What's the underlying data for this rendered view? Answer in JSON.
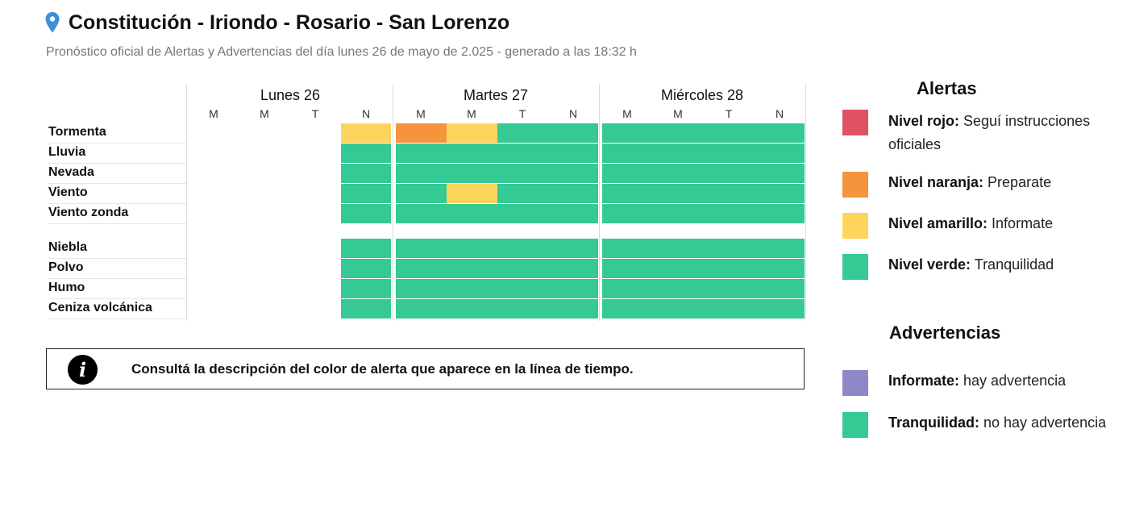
{
  "header": {
    "location": "Constitución - Iriondo - Rosario - San Lorenzo",
    "subtitle": "Pronóstico oficial de Alertas y Advertencias del día lunes 26 de mayo de 2.025 - generado a las 18:32 h"
  },
  "days": [
    {
      "label": "Lunes 26",
      "slots": [
        "M",
        "M",
        "T",
        "N"
      ]
    },
    {
      "label": "Martes 27",
      "slots": [
        "M",
        "M",
        "T",
        "N"
      ]
    },
    {
      "label": "Miércoles 28",
      "slots": [
        "M",
        "M",
        "T",
        "N"
      ]
    }
  ],
  "colors": {
    "rojo": "#e05263",
    "naranja": "#f4953e",
    "amarillo": "#fdd55c",
    "verde": "#35c994",
    "violeta": "#8c89c9"
  },
  "rows": [
    {
      "label": "Tormenta",
      "group": 1,
      "levels": [
        "",
        "",
        "",
        "amarillo",
        "naranja",
        "amarillo",
        "verde",
        "verde",
        "verde",
        "verde",
        "verde",
        "verde"
      ]
    },
    {
      "label": "Lluvia",
      "group": 1,
      "levels": [
        "",
        "",
        "",
        "verde",
        "verde",
        "verde",
        "verde",
        "verde",
        "verde",
        "verde",
        "verde",
        "verde"
      ]
    },
    {
      "label": "Nevada",
      "group": 1,
      "levels": [
        "",
        "",
        "",
        "verde",
        "verde",
        "verde",
        "verde",
        "verde",
        "verde",
        "verde",
        "verde",
        "verde"
      ]
    },
    {
      "label": "Viento",
      "group": 1,
      "levels": [
        "",
        "",
        "",
        "verde",
        "verde",
        "amarillo",
        "verde",
        "verde",
        "verde",
        "verde",
        "verde",
        "verde"
      ]
    },
    {
      "label": "Viento zonda",
      "group": 1,
      "levels": [
        "",
        "",
        "",
        "verde",
        "verde",
        "verde",
        "verde",
        "verde",
        "verde",
        "verde",
        "verde",
        "verde"
      ]
    },
    {
      "label": "Niebla",
      "group": 2,
      "levels": [
        "",
        "",
        "",
        "verde",
        "verde",
        "verde",
        "verde",
        "verde",
        "verde",
        "verde",
        "verde",
        "verde"
      ]
    },
    {
      "label": "Polvo",
      "group": 2,
      "levels": [
        "",
        "",
        "",
        "verde",
        "verde",
        "verde",
        "verde",
        "verde",
        "verde",
        "verde",
        "verde",
        "verde"
      ]
    },
    {
      "label": "Humo",
      "group": 2,
      "levels": [
        "",
        "",
        "",
        "verde",
        "verde",
        "verde",
        "verde",
        "verde",
        "verde",
        "verde",
        "verde",
        "verde"
      ]
    },
    {
      "label": "Ceniza volcánica",
      "group": 2,
      "levels": [
        "",
        "",
        "",
        "verde",
        "verde",
        "verde",
        "verde",
        "verde",
        "verde",
        "verde",
        "verde",
        "verde"
      ]
    }
  ],
  "info_banner": {
    "icon": "info-icon",
    "text": "Consultá la descripción del color de alerta que aparece en la línea de tiempo."
  },
  "legend": {
    "alertas": {
      "title": "Alertas",
      "items": [
        {
          "color": "rojo",
          "bold": "Nivel rojo:",
          "text": " Seguí instrucciones oficiales"
        },
        {
          "color": "naranja",
          "bold": "Nivel naranja:",
          "text": " Preparate"
        },
        {
          "color": "amarillo",
          "bold": "Nivel amarillo:",
          "text": " Informate"
        },
        {
          "color": "verde",
          "bold": "Nivel verde:",
          "text": " Tranquilidad"
        }
      ]
    },
    "advertencias": {
      "title": "Advertencias",
      "items": [
        {
          "color": "violeta",
          "bold": "Informate:",
          "text": " hay advertencia"
        },
        {
          "color": "verde",
          "bold": "Tranquilidad:",
          "text": " no hay advertencia"
        }
      ]
    }
  }
}
